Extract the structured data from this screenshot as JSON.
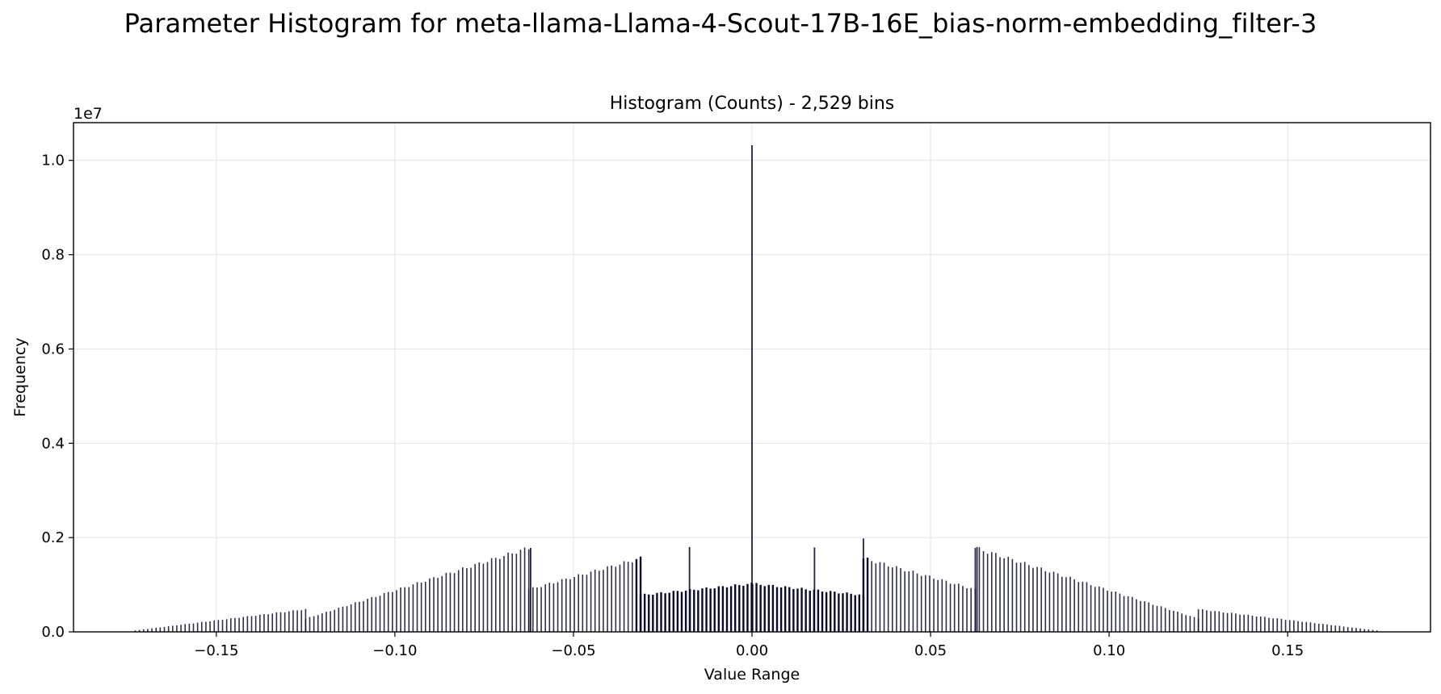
{
  "figure": {
    "suptitle": "Parameter Histogram for meta-llama-Llama-4-Scout-17B-16E_bias-norm-embedding_filter-3"
  },
  "chart_data": {
    "type": "bar",
    "title": "Histogram (Counts) - 2,529 bins",
    "xlabel": "Value Range",
    "ylabel": "Frequency",
    "y_offset_label": "1e7",
    "xlim": [
      -0.19,
      0.19
    ],
    "ylim": [
      0,
      10800000
    ],
    "x_ticks": [
      -0.15,
      -0.1,
      -0.05,
      0.0,
      0.05,
      0.1,
      0.15
    ],
    "x_tick_labels": [
      "−0.15",
      "−0.10",
      "−0.05",
      "0.00",
      "0.05",
      "0.10",
      "0.15"
    ],
    "y_ticks": [
      0,
      2000000,
      4000000,
      6000000,
      8000000,
      10000000
    ],
    "y_tick_labels": [
      "0.0",
      "0.2",
      "0.4",
      "0.6",
      "0.8",
      "1.0"
    ],
    "grid": true,
    "bar_color": "#0a0a2e",
    "bin_count": 2529,
    "envelope": {
      "description_points": "piecewise value-range segments with approximate counts",
      "segments": [
        {
          "x": [
            -0.1727,
            -0.125
          ],
          "y": [
            30000,
            480000
          ]
        },
        {
          "x": [
            -0.125,
            -0.0625
          ],
          "y": [
            280000,
            1780000
          ]
        },
        {
          "x": [
            -0.0625,
            -0.0312
          ],
          "y": [
            900000,
            1560000
          ]
        },
        {
          "x": [
            -0.0312,
            -0.0001
          ],
          "y": [
            780000,
            1020000
          ]
        },
        {
          "x": [
            0.0001,
            0.0312
          ],
          "y": [
            1020000,
            780000
          ]
        },
        {
          "x": [
            0.0312,
            0.0625
          ],
          "y": [
            1560000,
            900000
          ]
        },
        {
          "x": [
            0.0625,
            0.125
          ],
          "y": [
            1780000,
            280000
          ]
        },
        {
          "x": [
            0.125,
            0.175
          ],
          "y": [
            480000,
            30000
          ]
        }
      ],
      "spikes": [
        {
          "x": 0.0,
          "y": 10320000
        },
        {
          "x": 0.0312,
          "y": 1980000
        },
        {
          "x": -0.062,
          "y": 1780000
        },
        {
          "x": 0.063,
          "y": 1800000
        },
        {
          "x": -0.0175,
          "y": 1800000
        },
        {
          "x": 0.0175,
          "y": 1790000
        }
      ]
    }
  }
}
